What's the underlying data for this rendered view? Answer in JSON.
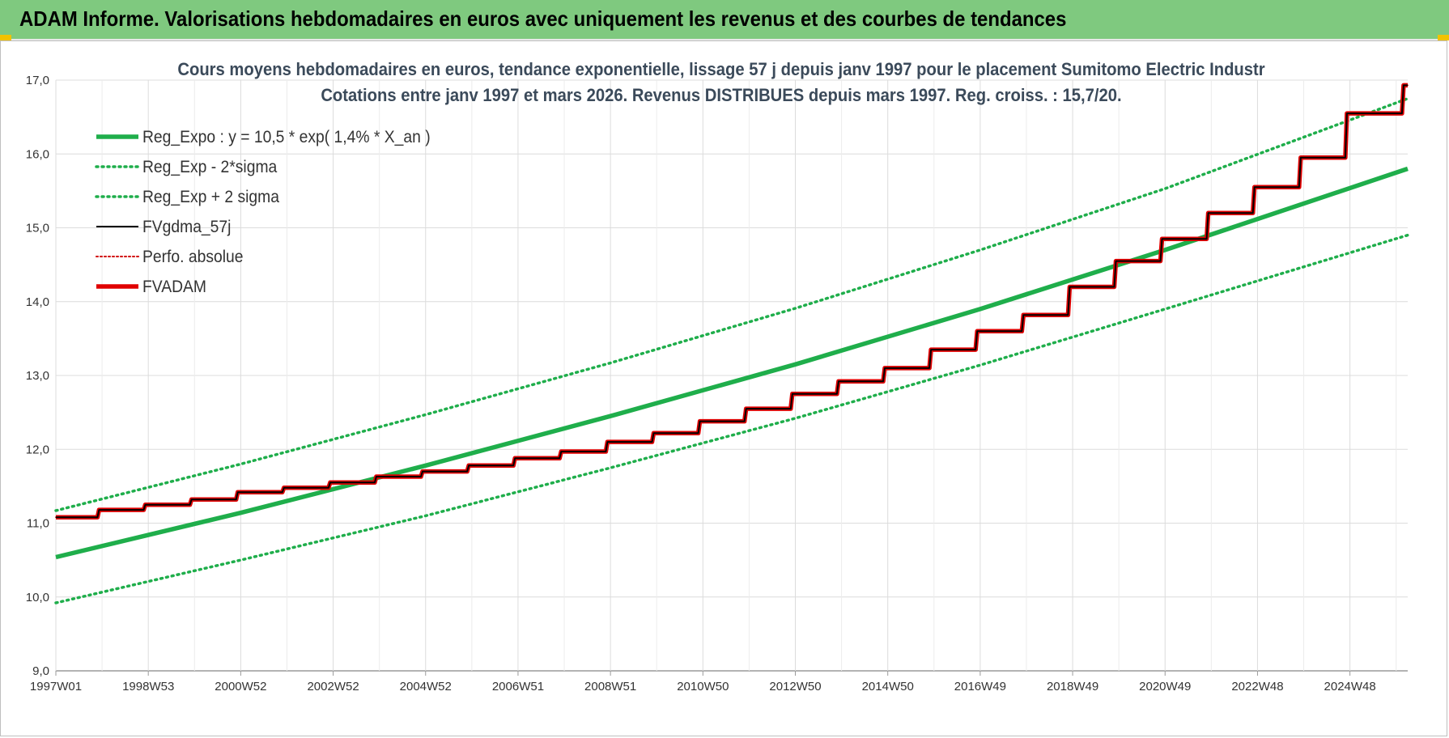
{
  "header": {
    "title": "ADAM Informe. Valorisations hebdomadaires en euros avec uniquement les revenus et des courbes de tendances"
  },
  "chart_data": {
    "type": "line",
    "title": "Cours moyens hebdomadaires en euros, tendance exponentielle, lissage 57 j depuis janv 1997  pour le placement Sumitomo Electric Industr",
    "subtitle": "Cotations entre janv 1997 et mars 2026. Revenus DISTRIBUES depuis mars 1997. Reg. croiss. : 15,7/20.",
    "xlabel": "",
    "ylabel": "",
    "x_range": [
      1997.0,
      2026.25
    ],
    "ylim": [
      9.0,
      17.0
    ],
    "x_ticks": [
      {
        "label": "1997W01",
        "x": 1997.0
      },
      {
        "label": "1998W53",
        "x": 1999.0
      },
      {
        "label": "2000W52",
        "x": 2001.0
      },
      {
        "label": "2002W52",
        "x": 2003.0
      },
      {
        "label": "2004W52",
        "x": 2005.0
      },
      {
        "label": "2006W51",
        "x": 2007.0
      },
      {
        "label": "2008W51",
        "x": 2009.0
      },
      {
        "label": "2010W50",
        "x": 2011.0
      },
      {
        "label": "2012W50",
        "x": 2013.0
      },
      {
        "label": "2014W50",
        "x": 2015.0
      },
      {
        "label": "2016W49",
        "x": 2017.0
      },
      {
        "label": "2018W49",
        "x": 2019.0
      },
      {
        "label": "2020W49",
        "x": 2021.0
      },
      {
        "label": "2022W48",
        "x": 2023.0
      },
      {
        "label": "2024W48",
        "x": 2025.0
      }
    ],
    "y_ticks": [
      "9,0",
      "10,0",
      "11,0",
      "12,0",
      "13,0",
      "14,0",
      "15,0",
      "16,0",
      "17,0"
    ],
    "grid": true,
    "legend_position": "top-left",
    "series": [
      {
        "name": "Reg_Expo : y = 10,5 * exp( 1,4% *  X_an )",
        "color": "#1fae4b",
        "style": "solid-thick",
        "x": [
          1997,
          2001,
          2005,
          2009,
          2013,
          2017,
          2021,
          2026.25
        ],
        "y": [
          10.54,
          11.14,
          11.78,
          12.45,
          13.15,
          13.9,
          14.7,
          15.8
        ]
      },
      {
        "name": "Reg_Exp - 2*sigma",
        "color": "#1fae4b",
        "style": "dotted",
        "x": [
          1997,
          2001,
          2005,
          2009,
          2013,
          2017,
          2021,
          2026.25
        ],
        "y": [
          9.92,
          10.5,
          11.1,
          11.75,
          12.42,
          13.14,
          13.9,
          14.9
        ]
      },
      {
        "name": "Reg_Exp + 2 sigma",
        "color": "#1fae4b",
        "style": "dotted",
        "x": [
          1997,
          2001,
          2005,
          2009,
          2013,
          2017,
          2021,
          2026.25
        ],
        "y": [
          11.17,
          11.8,
          12.47,
          13.17,
          13.91,
          14.7,
          15.53,
          16.75
        ]
      },
      {
        "name": "FVgdma_57j",
        "color": "#000000",
        "style": "solid-thin",
        "x": [
          1997,
          1998,
          1999,
          2000,
          2001,
          2002,
          2003,
          2004,
          2005,
          2006,
          2007,
          2008,
          2009,
          2010,
          2011,
          2012,
          2013,
          2014,
          2015,
          2016,
          2017,
          2018,
          2019,
          2020,
          2021,
          2022,
          2023,
          2024,
          2025,
          2026.25
        ],
        "y": [
          11.08,
          11.18,
          11.25,
          11.32,
          11.42,
          11.48,
          11.55,
          11.63,
          11.7,
          11.78,
          11.88,
          11.97,
          12.1,
          12.22,
          12.38,
          12.55,
          12.75,
          12.92,
          13.1,
          13.35,
          13.6,
          13.82,
          14.2,
          14.55,
          14.85,
          15.2,
          15.55,
          15.95,
          16.55,
          16.93
        ]
      },
      {
        "name": "Perfo. absolue",
        "color": "#d00000",
        "style": "dotted",
        "x": [
          1997,
          1998,
          1999,
          2000,
          2001,
          2002,
          2003,
          2004,
          2005,
          2006,
          2007,
          2008,
          2009,
          2010,
          2011,
          2012,
          2013,
          2014,
          2015,
          2016,
          2017,
          2018,
          2019,
          2020,
          2021,
          2022,
          2023,
          2024,
          2025,
          2026.25
        ],
        "y": [
          11.08,
          11.18,
          11.25,
          11.32,
          11.42,
          11.48,
          11.55,
          11.63,
          11.7,
          11.78,
          11.88,
          11.97,
          12.1,
          12.22,
          12.38,
          12.55,
          12.75,
          12.92,
          13.1,
          13.35,
          13.6,
          13.82,
          14.2,
          14.55,
          14.85,
          15.2,
          15.55,
          15.95,
          16.55,
          16.93
        ]
      },
      {
        "name": "FVADAM",
        "color": "#e00000",
        "style": "solid-thick",
        "x": [
          1997,
          1998,
          1999,
          2000,
          2001,
          2002,
          2003,
          2004,
          2005,
          2006,
          2007,
          2008,
          2009,
          2010,
          2011,
          2012,
          2013,
          2014,
          2015,
          2016,
          2017,
          2018,
          2019,
          2020,
          2021,
          2022,
          2023,
          2024,
          2025,
          2026.25
        ],
        "y": [
          11.08,
          11.18,
          11.25,
          11.32,
          11.42,
          11.48,
          11.55,
          11.63,
          11.7,
          11.78,
          11.88,
          11.97,
          12.1,
          12.22,
          12.38,
          12.55,
          12.75,
          12.92,
          13.1,
          13.35,
          13.6,
          13.82,
          14.2,
          14.55,
          14.85,
          15.2,
          15.55,
          15.95,
          16.55,
          16.93
        ]
      }
    ]
  }
}
